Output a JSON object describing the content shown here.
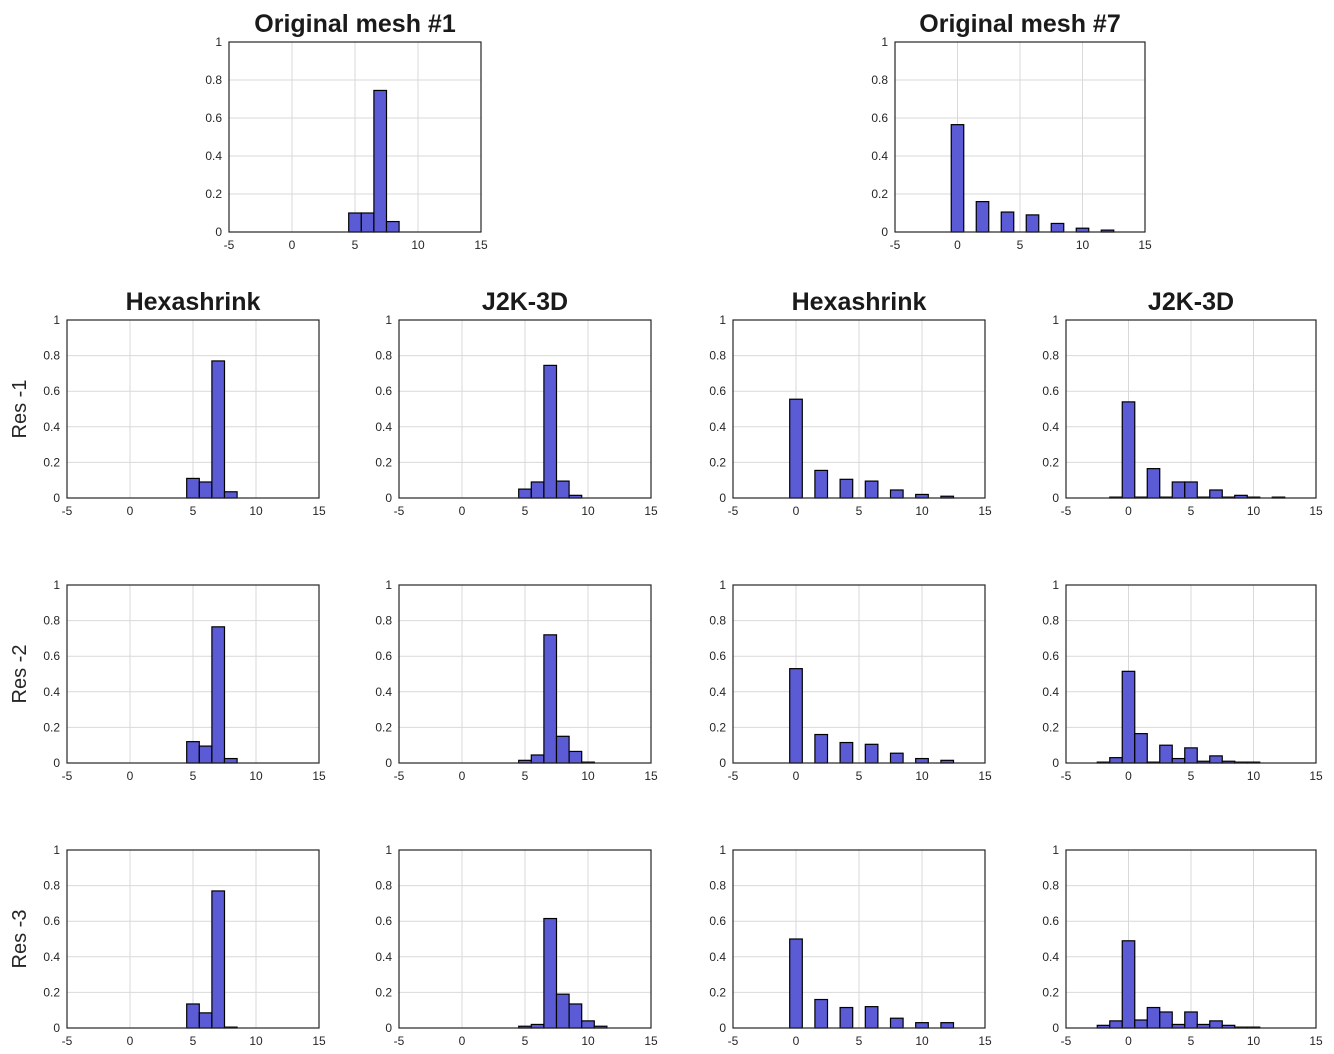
{
  "figure": {
    "row_labels": [
      "Res -1",
      "Res -2",
      "Res -3"
    ],
    "bar_color": "#5b5bd6",
    "bar_edge_color": "#000000"
  },
  "chart_data": [
    {
      "id": "orig1",
      "type": "bar",
      "title": "Original mesh #1",
      "xlim": [
        -5,
        15
      ],
      "ylim": [
        0,
        1
      ],
      "xticks": [
        -5,
        0,
        5,
        10,
        15
      ],
      "yticks": [
        0,
        0.2,
        0.4,
        0.6,
        0.8,
        1
      ],
      "grid": true,
      "bin_width": 1,
      "bins": [
        {
          "x": 5,
          "y": 0.1
        },
        {
          "x": 6,
          "y": 0.1
        },
        {
          "x": 7,
          "y": 0.745
        },
        {
          "x": 8,
          "y": 0.055
        }
      ]
    },
    {
      "id": "orig7",
      "type": "bar",
      "title": "Original mesh #7",
      "xlim": [
        -5,
        15
      ],
      "ylim": [
        0,
        1
      ],
      "xticks": [
        -5,
        0,
        5,
        10,
        15
      ],
      "yticks": [
        0,
        0.2,
        0.4,
        0.6,
        0.8,
        1
      ],
      "grid": true,
      "bin_width": 1,
      "bins": [
        {
          "x": 0,
          "y": 0.565
        },
        {
          "x": 2,
          "y": 0.16
        },
        {
          "x": 4,
          "y": 0.105
        },
        {
          "x": 6,
          "y": 0.09
        },
        {
          "x": 8,
          "y": 0.045
        },
        {
          "x": 10,
          "y": 0.02
        },
        {
          "x": 12,
          "y": 0.01
        }
      ]
    },
    {
      "id": "r1c1",
      "type": "bar",
      "title": "Hexashrink",
      "xlim": [
        -5,
        15
      ],
      "ylim": [
        0,
        1
      ],
      "xticks": [
        -5,
        0,
        5,
        10,
        15
      ],
      "yticks": [
        0,
        0.2,
        0.4,
        0.6,
        0.8,
        1
      ],
      "grid": true,
      "bin_width": 1,
      "bins": [
        {
          "x": 5,
          "y": 0.11
        },
        {
          "x": 6,
          "y": 0.09
        },
        {
          "x": 7,
          "y": 0.77
        },
        {
          "x": 8,
          "y": 0.035
        }
      ]
    },
    {
      "id": "r1c2",
      "type": "bar",
      "title": "J2K-3D",
      "xlim": [
        -5,
        15
      ],
      "ylim": [
        0,
        1
      ],
      "xticks": [
        -5,
        0,
        5,
        10,
        15
      ],
      "yticks": [
        0,
        0.2,
        0.4,
        0.6,
        0.8,
        1
      ],
      "grid": true,
      "bin_width": 1,
      "bins": [
        {
          "x": 5,
          "y": 0.05
        },
        {
          "x": 6,
          "y": 0.09
        },
        {
          "x": 7,
          "y": 0.745
        },
        {
          "x": 8,
          "y": 0.095
        },
        {
          "x": 9,
          "y": 0.015
        }
      ]
    },
    {
      "id": "r1c3",
      "type": "bar",
      "title": "Hexashrink",
      "xlim": [
        -5,
        15
      ],
      "ylim": [
        0,
        1
      ],
      "xticks": [
        -5,
        0,
        5,
        10,
        15
      ],
      "yticks": [
        0,
        0.2,
        0.4,
        0.6,
        0.8,
        1
      ],
      "grid": true,
      "bin_width": 1,
      "bins": [
        {
          "x": 0,
          "y": 0.555
        },
        {
          "x": 2,
          "y": 0.155
        },
        {
          "x": 4,
          "y": 0.105
        },
        {
          "x": 6,
          "y": 0.095
        },
        {
          "x": 8,
          "y": 0.045
        },
        {
          "x": 10,
          "y": 0.02
        },
        {
          "x": 12,
          "y": 0.01
        }
      ]
    },
    {
      "id": "r1c4",
      "type": "bar",
      "title": "J2K-3D",
      "xlim": [
        -5,
        15
      ],
      "ylim": [
        0,
        1
      ],
      "xticks": [
        -5,
        0,
        5,
        10,
        15
      ],
      "yticks": [
        0,
        0.2,
        0.4,
        0.6,
        0.8,
        1
      ],
      "grid": true,
      "bin_width": 1,
      "bins": [
        {
          "x": -1,
          "y": 0.005
        },
        {
          "x": 0,
          "y": 0.54
        },
        {
          "x": 1,
          "y": 0.005
        },
        {
          "x": 2,
          "y": 0.165
        },
        {
          "x": 3,
          "y": 0.005
        },
        {
          "x": 4,
          "y": 0.09
        },
        {
          "x": 5,
          "y": 0.09
        },
        {
          "x": 6,
          "y": 0.005
        },
        {
          "x": 7,
          "y": 0.045
        },
        {
          "x": 8,
          "y": 0.005
        },
        {
          "x": 9,
          "y": 0.015
        },
        {
          "x": 10,
          "y": 0.005
        },
        {
          "x": 12,
          "y": 0.005
        }
      ]
    },
    {
      "id": "r2c1",
      "type": "bar",
      "title": "",
      "xlim": [
        -5,
        15
      ],
      "ylim": [
        0,
        1
      ],
      "xticks": [
        -5,
        0,
        5,
        10,
        15
      ],
      "yticks": [
        0,
        0.2,
        0.4,
        0.6,
        0.8,
        1
      ],
      "grid": true,
      "bin_width": 1,
      "bins": [
        {
          "x": 5,
          "y": 0.12
        },
        {
          "x": 6,
          "y": 0.095
        },
        {
          "x": 7,
          "y": 0.765
        },
        {
          "x": 8,
          "y": 0.025
        }
      ]
    },
    {
      "id": "r2c2",
      "type": "bar",
      "title": "",
      "xlim": [
        -5,
        15
      ],
      "ylim": [
        0,
        1
      ],
      "xticks": [
        -5,
        0,
        5,
        10,
        15
      ],
      "yticks": [
        0,
        0.2,
        0.4,
        0.6,
        0.8,
        1
      ],
      "grid": true,
      "bin_width": 1,
      "bins": [
        {
          "x": 5,
          "y": 0.015
        },
        {
          "x": 6,
          "y": 0.045
        },
        {
          "x": 7,
          "y": 0.72
        },
        {
          "x": 8,
          "y": 0.15
        },
        {
          "x": 9,
          "y": 0.065
        },
        {
          "x": 10,
          "y": 0.005
        }
      ]
    },
    {
      "id": "r2c3",
      "type": "bar",
      "title": "",
      "xlim": [
        -5,
        15
      ],
      "ylim": [
        0,
        1
      ],
      "xticks": [
        -5,
        0,
        5,
        10,
        15
      ],
      "yticks": [
        0,
        0.2,
        0.4,
        0.6,
        0.8,
        1
      ],
      "grid": true,
      "bin_width": 1,
      "bins": [
        {
          "x": 0,
          "y": 0.53
        },
        {
          "x": 2,
          "y": 0.16
        },
        {
          "x": 4,
          "y": 0.115
        },
        {
          "x": 6,
          "y": 0.105
        },
        {
          "x": 8,
          "y": 0.055
        },
        {
          "x": 10,
          "y": 0.025
        },
        {
          "x": 12,
          "y": 0.015
        }
      ]
    },
    {
      "id": "r2c4",
      "type": "bar",
      "title": "",
      "xlim": [
        -5,
        15
      ],
      "ylim": [
        0,
        1
      ],
      "xticks": [
        -5,
        0,
        5,
        10,
        15
      ],
      "yticks": [
        0,
        0.2,
        0.4,
        0.6,
        0.8,
        1
      ],
      "grid": true,
      "bin_width": 1,
      "bins": [
        {
          "x": -2,
          "y": 0.005
        },
        {
          "x": -1,
          "y": 0.03
        },
        {
          "x": 0,
          "y": 0.515
        },
        {
          "x": 1,
          "y": 0.165
        },
        {
          "x": 2,
          "y": 0.005
        },
        {
          "x": 3,
          "y": 0.1
        },
        {
          "x": 4,
          "y": 0.025
        },
        {
          "x": 5,
          "y": 0.085
        },
        {
          "x": 6,
          "y": 0.01
        },
        {
          "x": 7,
          "y": 0.04
        },
        {
          "x": 8,
          "y": 0.01
        },
        {
          "x": 9,
          "y": 0.005
        },
        {
          "x": 10,
          "y": 0.005
        }
      ]
    },
    {
      "id": "r3c1",
      "type": "bar",
      "title": "",
      "xlim": [
        -5,
        15
      ],
      "ylim": [
        0,
        1
      ],
      "xticks": [
        -5,
        0,
        5,
        10,
        15
      ],
      "yticks": [
        0,
        0.2,
        0.4,
        0.6,
        0.8,
        1
      ],
      "grid": true,
      "bin_width": 1,
      "bins": [
        {
          "x": 5,
          "y": 0.135
        },
        {
          "x": 6,
          "y": 0.085
        },
        {
          "x": 7,
          "y": 0.77
        },
        {
          "x": 8,
          "y": 0.005
        }
      ]
    },
    {
      "id": "r3c2",
      "type": "bar",
      "title": "",
      "xlim": [
        -5,
        15
      ],
      "ylim": [
        0,
        1
      ],
      "xticks": [
        -5,
        0,
        5,
        10,
        15
      ],
      "yticks": [
        0,
        0.2,
        0.4,
        0.6,
        0.8,
        1
      ],
      "grid": true,
      "bin_width": 1,
      "bins": [
        {
          "x": 5,
          "y": 0.01
        },
        {
          "x": 6,
          "y": 0.02
        },
        {
          "x": 7,
          "y": 0.615
        },
        {
          "x": 8,
          "y": 0.19
        },
        {
          "x": 9,
          "y": 0.135
        },
        {
          "x": 10,
          "y": 0.04
        },
        {
          "x": 11,
          "y": 0.01
        }
      ]
    },
    {
      "id": "r3c3",
      "type": "bar",
      "title": "",
      "xlim": [
        -5,
        15
      ],
      "ylim": [
        0,
        1
      ],
      "xticks": [
        -5,
        0,
        5,
        10,
        15
      ],
      "yticks": [
        0,
        0.2,
        0.4,
        0.6,
        0.8,
        1
      ],
      "grid": true,
      "bin_width": 1,
      "bins": [
        {
          "x": 0,
          "y": 0.5
        },
        {
          "x": 2,
          "y": 0.16
        },
        {
          "x": 4,
          "y": 0.115
        },
        {
          "x": 6,
          "y": 0.12
        },
        {
          "x": 8,
          "y": 0.055
        },
        {
          "x": 10,
          "y": 0.03
        },
        {
          "x": 12,
          "y": 0.03
        }
      ]
    },
    {
      "id": "r3c4",
      "type": "bar",
      "title": "",
      "xlim": [
        -5,
        15
      ],
      "ylim": [
        0,
        1
      ],
      "xticks": [
        -5,
        0,
        5,
        10,
        15
      ],
      "yticks": [
        0,
        0.2,
        0.4,
        0.6,
        0.8,
        1
      ],
      "grid": true,
      "bin_width": 1,
      "bins": [
        {
          "x": -2,
          "y": 0.015
        },
        {
          "x": -1,
          "y": 0.04
        },
        {
          "x": 0,
          "y": 0.49
        },
        {
          "x": 1,
          "y": 0.045
        },
        {
          "x": 2,
          "y": 0.115
        },
        {
          "x": 3,
          "y": 0.09
        },
        {
          "x": 4,
          "y": 0.02
        },
        {
          "x": 5,
          "y": 0.09
        },
        {
          "x": 6,
          "y": 0.02
        },
        {
          "x": 7,
          "y": 0.04
        },
        {
          "x": 8,
          "y": 0.015
        },
        {
          "x": 9,
          "y": 0.005
        },
        {
          "x": 10,
          "y": 0.005
        }
      ]
    }
  ]
}
